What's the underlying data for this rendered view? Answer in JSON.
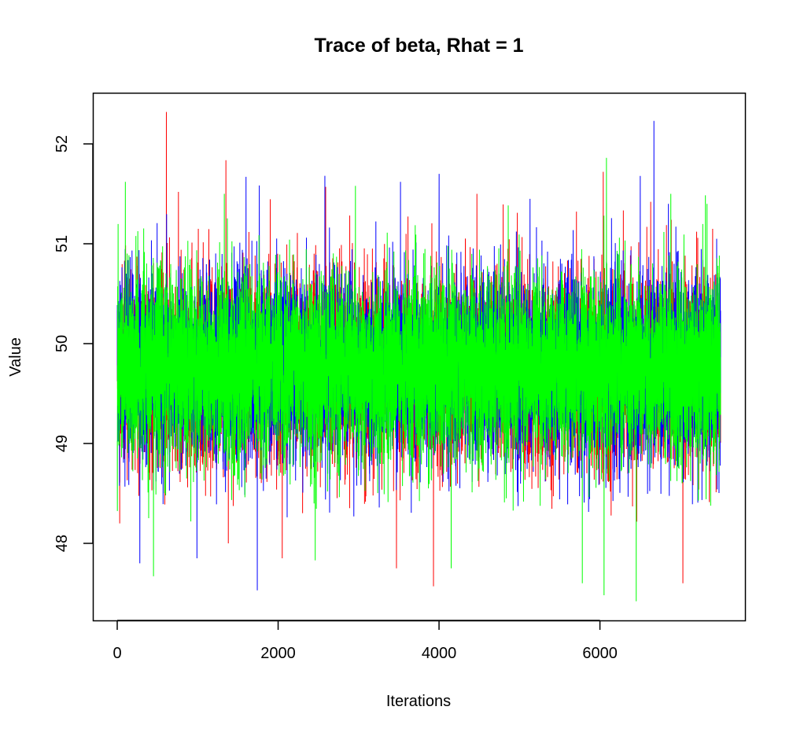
{
  "chart_data": {
    "type": "line",
    "title": "Trace of beta, Rhat = 1",
    "xlabel": "Iterations",
    "ylabel": "Value",
    "xlim": [
      0,
      7500
    ],
    "ylim": [
      47.4,
      52.3
    ],
    "x_ticks": [
      0,
      2000,
      4000,
      6000
    ],
    "y_ticks": [
      48,
      49,
      50,
      51,
      52
    ],
    "x_tick_labels": [
      "0",
      "2000",
      "4000",
      "6000"
    ],
    "y_tick_labels": [
      "48",
      "49",
      "50",
      "51",
      "52"
    ],
    "grid": false,
    "legend": "none",
    "series_summary": {
      "n_iterations": 7500,
      "central_value": 49.75,
      "typical_range": [
        48.8,
        50.7
      ],
      "observed_min": 47.42,
      "observed_max": 52.32
    },
    "series": [
      {
        "color": "#ff0000",
        "spikes": [
          [
            30,
            48.2
          ],
          [
            610,
            52.32
          ],
          [
            760,
            51.52
          ],
          [
            1380,
            48.0
          ],
          [
            2050,
            47.85
          ],
          [
            2590,
            51.57
          ],
          [
            3470,
            47.75
          ],
          [
            3930,
            47.57
          ],
          [
            4470,
            51.5
          ],
          [
            6040,
            51.72
          ],
          [
            6630,
            51.42
          ],
          [
            7030,
            47.6
          ],
          [
            7400,
            51.15
          ]
        ]
      },
      {
        "color": "#0000ff",
        "spikes": [
          [
            280,
            47.8
          ],
          [
            990,
            47.85
          ],
          [
            1600,
            51.67
          ],
          [
            1740,
            47.53
          ],
          [
            2580,
            51.68
          ],
          [
            3520,
            51.62
          ],
          [
            4000,
            51.7
          ],
          [
            5130,
            51.45
          ],
          [
            6670,
            52.23
          ],
          [
            6850,
            51.4
          ],
          [
            7450,
            51.05
          ]
        ]
      },
      {
        "color": "#00ff00",
        "spikes": [
          [
            100,
            51.62
          ],
          [
            450,
            47.67
          ],
          [
            1330,
            51.5
          ],
          [
            2460,
            47.83
          ],
          [
            2960,
            51.58
          ],
          [
            4150,
            47.75
          ],
          [
            5780,
            47.6
          ],
          [
            6050,
            47.48
          ],
          [
            6080,
            51.86
          ],
          [
            6450,
            47.42
          ],
          [
            6880,
            51.5
          ],
          [
            7330,
            51.4
          ]
        ]
      }
    ]
  }
}
